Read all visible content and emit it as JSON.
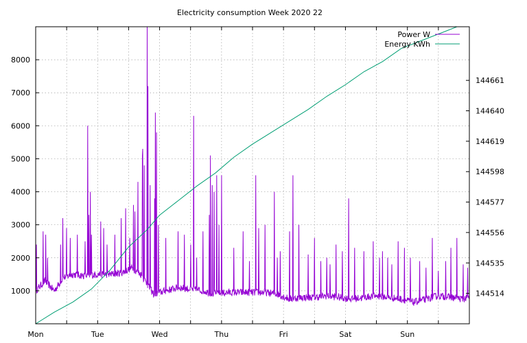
{
  "chart_data": {
    "type": "line",
    "title": "Electricity consumption Week 2020 22",
    "xlabel": "",
    "ylabel": "",
    "y2label": "",
    "grid": true,
    "legend_position": "top-right",
    "x_categories": [
      "Mon",
      "Tue",
      "Wed",
      "Thu",
      "Fri",
      "Sat",
      "Sun"
    ],
    "x_range_days": [
      0,
      7
    ],
    "y_left": {
      "range": [
        0,
        9000
      ],
      "ticks": [
        1000,
        2000,
        3000,
        4000,
        5000,
        6000,
        7000,
        8000
      ]
    },
    "y_right": {
      "range": [
        144493,
        144698
      ],
      "ticks": [
        144514,
        144535,
        144556,
        144577,
        144598,
        144619,
        144640,
        144661
      ]
    },
    "colors": {
      "power": "#9400d3",
      "energy": "#009e73",
      "grid": "#a0a0a0"
    },
    "series": [
      {
        "name": "Power W",
        "axis": "left",
        "baseline_points": [
          [
            0.0,
            1000
          ],
          [
            0.05,
            1100
          ],
          [
            0.15,
            1300
          ],
          [
            0.3,
            1000
          ],
          [
            0.45,
            1400
          ],
          [
            0.6,
            1500
          ],
          [
            0.8,
            1450
          ],
          [
            1.0,
            1500
          ],
          [
            1.2,
            1500
          ],
          [
            1.4,
            1550
          ],
          [
            1.55,
            1700
          ],
          [
            1.7,
            1500
          ],
          [
            1.8,
            1200
          ],
          [
            1.9,
            900
          ],
          [
            2.1,
            1000
          ],
          [
            2.3,
            1100
          ],
          [
            2.5,
            1050
          ],
          [
            2.7,
            1000
          ],
          [
            2.9,
            900
          ],
          [
            3.1,
            950
          ],
          [
            3.3,
            950
          ],
          [
            3.5,
            950
          ],
          [
            3.7,
            950
          ],
          [
            3.9,
            900
          ],
          [
            4.1,
            750
          ],
          [
            4.3,
            800
          ],
          [
            4.5,
            800
          ],
          [
            4.7,
            850
          ],
          [
            4.9,
            800
          ],
          [
            5.1,
            750
          ],
          [
            5.3,
            800
          ],
          [
            5.5,
            850
          ],
          [
            5.7,
            800
          ],
          [
            5.9,
            750
          ],
          [
            6.1,
            650
          ],
          [
            6.3,
            750
          ],
          [
            6.5,
            850
          ],
          [
            6.7,
            800
          ],
          [
            6.9,
            750
          ],
          [
            7.0,
            800
          ]
        ],
        "peaks": [
          [
            0.01,
            2400
          ],
          [
            0.12,
            2800
          ],
          [
            0.16,
            2700
          ],
          [
            0.19,
            2000
          ],
          [
            0.4,
            2400
          ],
          [
            0.44,
            3200
          ],
          [
            0.5,
            2900
          ],
          [
            0.56,
            2600
          ],
          [
            0.67,
            2700
          ],
          [
            0.8,
            2500
          ],
          [
            0.84,
            6000
          ],
          [
            0.86,
            3300
          ],
          [
            0.88,
            4000
          ],
          [
            0.9,
            2700
          ],
          [
            1.05,
            3100
          ],
          [
            1.1,
            2900
          ],
          [
            1.15,
            2400
          ],
          [
            1.28,
            2700
          ],
          [
            1.38,
            3200
          ],
          [
            1.45,
            3500
          ],
          [
            1.52,
            2600
          ],
          [
            1.58,
            3600
          ],
          [
            1.6,
            3400
          ],
          [
            1.65,
            4300
          ],
          [
            1.72,
            5100
          ],
          [
            1.73,
            5300
          ],
          [
            1.75,
            4800
          ],
          [
            1.8,
            9000
          ],
          [
            1.81,
            7200
          ],
          [
            1.85,
            4200
          ],
          [
            1.92,
            3800
          ],
          [
            1.93,
            6400
          ],
          [
            1.95,
            5800
          ],
          [
            1.98,
            3000
          ],
          [
            2.1,
            2600
          ],
          [
            2.3,
            2800
          ],
          [
            2.4,
            2700
          ],
          [
            2.5,
            2400
          ],
          [
            2.55,
            6300
          ],
          [
            2.6,
            2000
          ],
          [
            2.7,
            2800
          ],
          [
            2.8,
            3300
          ],
          [
            2.82,
            5100
          ],
          [
            2.85,
            4200
          ],
          [
            2.88,
            4000
          ],
          [
            2.92,
            4500
          ],
          [
            2.96,
            3000
          ],
          [
            3.0,
            4500
          ],
          [
            3.2,
            2300
          ],
          [
            3.35,
            2800
          ],
          [
            3.45,
            1900
          ],
          [
            3.55,
            4500
          ],
          [
            3.6,
            2900
          ],
          [
            3.7,
            3000
          ],
          [
            3.85,
            4000
          ],
          [
            3.9,
            2000
          ],
          [
            3.95,
            2200
          ],
          [
            4.1,
            2800
          ],
          [
            4.15,
            4500
          ],
          [
            4.25,
            3000
          ],
          [
            4.4,
            2100
          ],
          [
            4.5,
            2600
          ],
          [
            4.6,
            1900
          ],
          [
            4.7,
            2000
          ],
          [
            4.75,
            1800
          ],
          [
            4.85,
            2400
          ],
          [
            4.95,
            2200
          ],
          [
            5.05,
            3800
          ],
          [
            5.15,
            2300
          ],
          [
            5.3,
            2200
          ],
          [
            5.45,
            2500
          ],
          [
            5.55,
            2000
          ],
          [
            5.6,
            2200
          ],
          [
            5.68,
            2000
          ],
          [
            5.75,
            1800
          ],
          [
            5.85,
            2500
          ],
          [
            5.95,
            2300
          ],
          [
            6.05,
            2000
          ],
          [
            6.2,
            1900
          ],
          [
            6.3,
            1700
          ],
          [
            6.4,
            2600
          ],
          [
            6.5,
            1600
          ],
          [
            6.62,
            1900
          ],
          [
            6.7,
            2300
          ],
          [
            6.8,
            2600
          ],
          [
            6.9,
            1800
          ],
          [
            6.97,
            1700
          ]
        ]
      },
      {
        "name": "Energy KWh",
        "axis": "right",
        "points": [
          [
            0.0,
            144493
          ],
          [
            0.3,
            144501
          ],
          [
            0.6,
            144508
          ],
          [
            0.9,
            144517
          ],
          [
            1.2,
            144530
          ],
          [
            1.5,
            144546
          ],
          [
            1.8,
            144558
          ],
          [
            2.0,
            144568
          ],
          [
            2.3,
            144578
          ],
          [
            2.6,
            144588
          ],
          [
            2.9,
            144597
          ],
          [
            3.2,
            144608
          ],
          [
            3.5,
            144617
          ],
          [
            3.8,
            144625
          ],
          [
            4.1,
            144633
          ],
          [
            4.4,
            144641
          ],
          [
            4.7,
            144650
          ],
          [
            5.0,
            144658
          ],
          [
            5.3,
            144667
          ],
          [
            5.6,
            144674
          ],
          [
            5.9,
            144683
          ],
          [
            6.2,
            144688
          ],
          [
            6.5,
            144693
          ],
          [
            6.8,
            144698
          ],
          [
            7.0,
            144703
          ]
        ]
      }
    ]
  }
}
